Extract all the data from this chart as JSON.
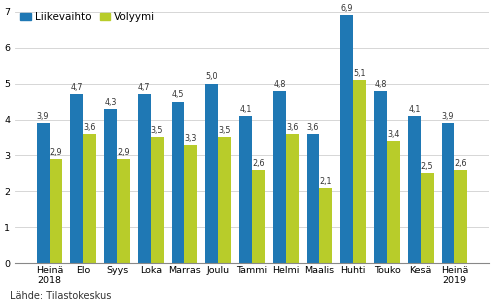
{
  "categories": [
    "Heinä\n2018",
    "Elo",
    "Syys",
    "Loka",
    "Marras",
    "Joulu",
    "Tammi",
    "Helmi",
    "Maalis",
    "Huhti",
    "Touko",
    "Kesä",
    "Heinä\n2019"
  ],
  "liikevaihto": [
    3.9,
    4.7,
    4.3,
    4.7,
    4.5,
    5.0,
    4.1,
    4.8,
    3.6,
    6.9,
    4.8,
    4.1,
    3.9
  ],
  "volyymi": [
    2.9,
    3.6,
    2.9,
    3.5,
    3.3,
    3.5,
    2.6,
    3.6,
    2.1,
    5.1,
    3.4,
    2.5,
    2.6
  ],
  "liikevaihto_color": "#1F78B4",
  "volyymi_color": "#B8CC2A",
  "ylim": [
    0,
    7
  ],
  "yticks": [
    0,
    1,
    2,
    3,
    4,
    5,
    6,
    7
  ],
  "legend_labels": [
    "Liikevaihto",
    "Volyymi"
  ],
  "source_text": "Lähde: Tilastokeskus",
  "bar_width": 0.38,
  "label_fontsize": 5.8,
  "tick_fontsize": 6.8,
  "legend_fontsize": 7.5,
  "source_fontsize": 7.0
}
